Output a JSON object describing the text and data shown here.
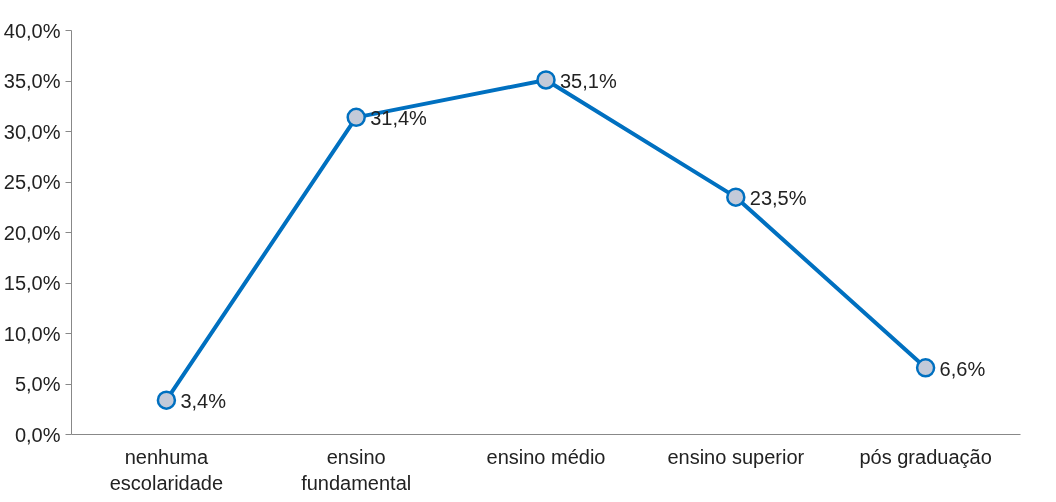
{
  "chart_data": {
    "type": "line",
    "categories": [
      "nenhuma escolaridade",
      "ensino fundamental",
      "ensino médio",
      "ensino superior",
      "pós graduação"
    ],
    "series": [
      {
        "color": "#0070c0",
        "values": [
          3.4,
          31.4,
          35.1,
          23.5,
          6.6
        ],
        "value_labels": [
          "3,4%",
          "31,4%",
          "35,1%",
          "23,5%",
          "6,6%"
        ]
      }
    ],
    "ylim": [
      0,
      40
    ],
    "yticks": [
      {
        "value": 0,
        "label": "0,0%"
      },
      {
        "value": 5,
        "label": "5,0%"
      },
      {
        "value": 10,
        "label": "10,0%"
      },
      {
        "value": 15,
        "label": "15,0%"
      },
      {
        "value": 20,
        "label": "20,0%"
      },
      {
        "value": 25,
        "label": "25,0%"
      },
      {
        "value": 30,
        "label": "30,0%"
      },
      {
        "value": 35,
        "label": "35,0%"
      },
      {
        "value": 40,
        "label": "40,0%"
      }
    ],
    "marker": "circle",
    "line_style": "solid",
    "grid": false
  }
}
